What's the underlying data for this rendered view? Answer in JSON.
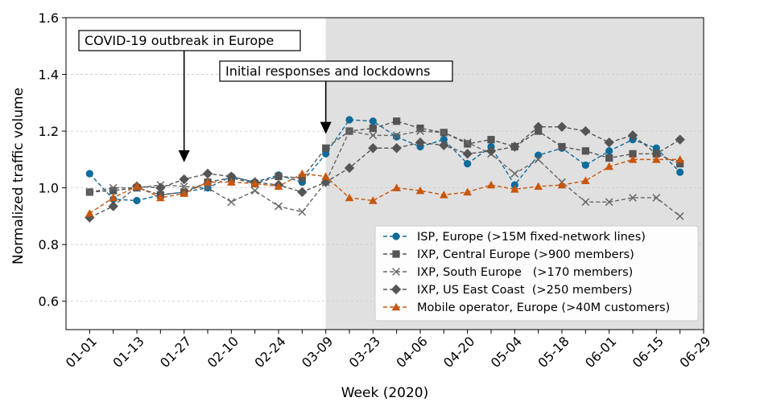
{
  "chart_data": {
    "type": "line",
    "xlabel": "Week (2020)",
    "ylabel": "Normalized traffic volume",
    "ylim": [
      0.5,
      1.6
    ],
    "yticks": [
      0.6,
      0.8,
      1.0,
      1.2,
      1.4,
      1.6
    ],
    "ytick_labels": [
      "0.6",
      "0.8",
      "1.0",
      "1.2",
      "1.4",
      "1.6"
    ],
    "xlim_week": [
      -1,
      26
    ],
    "xticks": [
      {
        "week": 0,
        "label": "01-01"
      },
      {
        "week": 2,
        "label": "01-13"
      },
      {
        "week": 4,
        "label": "01-27"
      },
      {
        "week": 6,
        "label": "02-10"
      },
      {
        "week": 8,
        "label": "02-24"
      },
      {
        "week": 10,
        "label": "03-09"
      },
      {
        "week": 12,
        "label": "03-23"
      },
      {
        "week": 14,
        "label": "04-06"
      },
      {
        "week": 16,
        "label": "04-20"
      },
      {
        "week": 18,
        "label": "05-04"
      },
      {
        "week": 20,
        "label": "05-18"
      },
      {
        "week": 22,
        "label": "06-01"
      },
      {
        "week": 24,
        "label": "06-15"
      },
      {
        "week": 26,
        "label": "06-29"
      }
    ],
    "x_weeks": [
      0,
      1,
      2,
      3,
      4,
      5,
      6,
      7,
      8,
      9,
      10,
      11,
      12,
      13,
      14,
      15,
      16,
      17,
      18,
      19,
      20,
      21,
      22,
      23,
      24,
      25
    ],
    "shaded_region": {
      "from_week": 10,
      "to_week": 26,
      "color": "#e0e0e0"
    },
    "grid": "horizontal",
    "legend_position": "lower-right",
    "series": [
      {
        "name": "ISP, Europe (>15M fixed-network lines)",
        "color": "#0f6b9a",
        "marker": "circle",
        "values": [
          1.05,
          0.96,
          0.955,
          0.975,
          0.985,
          1.0,
          1.04,
          1.02,
          1.045,
          1.02,
          1.12,
          1.24,
          1.235,
          1.18,
          1.145,
          1.17,
          1.085,
          1.145,
          1.01,
          1.115,
          1.14,
          1.08,
          1.13,
          1.17,
          1.14,
          1.055
        ]
      },
      {
        "name": "IXP, Central Europe (>900 members)",
        "color": "#555555",
        "marker": "square",
        "values": [
          0.985,
          0.99,
          1.0,
          0.975,
          0.985,
          1.02,
          1.035,
          1.015,
          1.04,
          1.035,
          1.14,
          1.2,
          1.21,
          1.235,
          1.21,
          1.195,
          1.155,
          1.17,
          1.145,
          1.2,
          1.145,
          1.13,
          1.105,
          1.12,
          1.12,
          1.085
        ]
      },
      {
        "name": "IXP, South Europe   (>170 members)",
        "color": "#666666",
        "marker": "x",
        "values": [
          0.985,
          1.0,
          1.0,
          1.01,
          1.005,
          1.0,
          0.95,
          0.99,
          0.935,
          0.915,
          1.02,
          1.2,
          1.185,
          1.185,
          1.2,
          1.195,
          1.16,
          1.12,
          1.05,
          1.1,
          1.02,
          0.95,
          0.95,
          0.965,
          0.965,
          0.9
        ]
      },
      {
        "name": "IXP, US East Coast  (>250 members)",
        "color": "#555555",
        "marker": "diamond",
        "values": [
          0.895,
          0.935,
          1.005,
          1.0,
          1.03,
          1.05,
          1.04,
          1.02,
          1.01,
          0.985,
          1.02,
          1.07,
          1.14,
          1.14,
          1.16,
          1.15,
          1.12,
          1.13,
          1.145,
          1.215,
          1.215,
          1.2,
          1.16,
          1.185,
          1.12,
          1.17
        ]
      },
      {
        "name": "Mobile operator, Europe (>40M customers)",
        "color": "#c8560e",
        "marker": "triangle",
        "values": [
          0.91,
          0.965,
          1.005,
          0.965,
          0.98,
          1.02,
          1.02,
          1.015,
          1.005,
          1.05,
          1.04,
          0.965,
          0.955,
          1.0,
          0.99,
          0.975,
          0.985,
          1.01,
          0.995,
          1.005,
          1.01,
          1.025,
          1.075,
          1.1,
          1.1,
          1.1
        ]
      }
    ],
    "annotations": [
      {
        "text": "COVID-19 outbreak in Europe",
        "arrow_to_week": 4,
        "arrow_to_value": 1.09
      },
      {
        "text": "Initial responses and lockdowns",
        "arrow_to_week": 10,
        "arrow_to_value": 1.19
      }
    ]
  }
}
